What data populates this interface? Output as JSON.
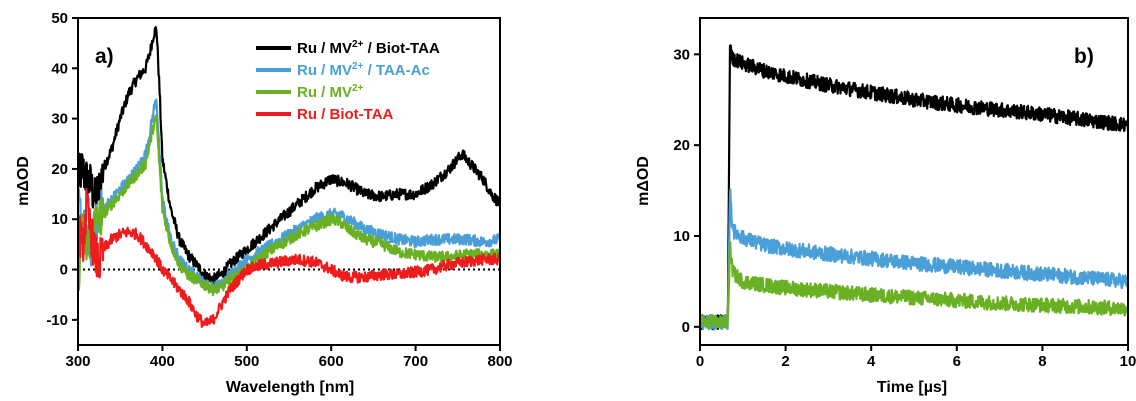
{
  "chart_data": [
    {
      "type": "line",
      "panel_label": "a)",
      "xlabel": "Wavelength [nm]",
      "ylabel": "mΔOD",
      "xlim": [
        300,
        800
      ],
      "ylim": [
        -15,
        50
      ],
      "xticks": [
        300,
        400,
        500,
        600,
        700,
        800
      ],
      "yticks": [
        -10,
        0,
        10,
        20,
        30,
        40,
        50
      ],
      "ytick_labels": [
        "-10",
        "0",
        "10",
        "20",
        "30",
        "40",
        "50"
      ],
      "zero_line": "dotted",
      "legend_position": "top-right",
      "grid": false,
      "series": [
        {
          "name": "Ru / MV2+ / Biot-TAA",
          "legend": {
            "prefix": "Ru / MV",
            "sup": "2+",
            "suffix": " / Biot-TAA"
          },
          "color": "#000000",
          "x": [
            300,
            305,
            310,
            315,
            320,
            325,
            330,
            340,
            350,
            360,
            370,
            380,
            385,
            390,
            393,
            396,
            400,
            410,
            420,
            430,
            440,
            450,
            460,
            470,
            480,
            500,
            520,
            540,
            560,
            580,
            600,
            610,
            620,
            640,
            660,
            680,
            700,
            720,
            740,
            755,
            765,
            780,
            790,
            800
          ],
          "y": [
            18,
            20,
            18,
            17,
            14,
            16,
            20,
            24,
            30,
            35,
            38,
            40,
            43,
            47,
            48,
            38,
            22,
            12,
            6,
            3,
            1,
            -1,
            -2,
            -1,
            1,
            4,
            7,
            10,
            13,
            16,
            18,
            17.5,
            17,
            15,
            14.5,
            15,
            15,
            17,
            20,
            23,
            21,
            18,
            15,
            13
          ]
        },
        {
          "name": "Ru / MV2+ / TAA-Ac",
          "legend": {
            "prefix": "Ru / MV",
            "sup": "2+",
            "suffix": " / TAA-Ac"
          },
          "color": "#4a9fd8",
          "x": [
            300,
            305,
            310,
            315,
            320,
            325,
            330,
            340,
            350,
            360,
            370,
            380,
            385,
            390,
            393,
            396,
            400,
            410,
            420,
            430,
            440,
            450,
            460,
            470,
            480,
            500,
            520,
            540,
            560,
            580,
            600,
            610,
            620,
            640,
            660,
            680,
            700,
            720,
            740,
            760,
            780,
            800
          ],
          "y": [
            13,
            10,
            5,
            3,
            8,
            11,
            12,
            14,
            16,
            18,
            20,
            23,
            27,
            32,
            34,
            25,
            14,
            6,
            2,
            0,
            -1,
            -3,
            -3.5,
            -3,
            -1,
            2,
            4,
            6,
            8,
            10,
            11,
            11,
            10,
            8,
            7,
            6,
            5.5,
            6,
            6,
            6,
            5.5,
            6
          ]
        },
        {
          "name": "Ru / MV2+",
          "legend": {
            "prefix": "Ru / MV",
            "sup": "2+",
            "suffix": ""
          },
          "color": "#6ab023",
          "x": [
            300,
            305,
            310,
            315,
            320,
            325,
            330,
            340,
            350,
            360,
            370,
            380,
            385,
            390,
            393,
            396,
            400,
            410,
            420,
            430,
            440,
            450,
            460,
            470,
            480,
            500,
            520,
            540,
            560,
            580,
            600,
            610,
            620,
            640,
            660,
            680,
            700,
            720,
            740,
            760,
            780,
            800
          ],
          "y": [
            -2,
            8,
            4,
            7,
            9,
            10,
            11,
            13,
            15,
            17,
            19,
            21,
            25,
            29,
            30,
            22,
            12,
            5,
            1,
            -1,
            -2,
            -3,
            -4,
            -3.5,
            -2,
            0,
            3,
            5,
            7,
            8.5,
            10,
            9.5,
            8,
            6,
            5,
            3.5,
            3,
            2.5,
            2.5,
            3,
            3,
            3
          ]
        },
        {
          "name": "Ru / Biot-TAA",
          "legend": {
            "prefix": "Ru / Biot-TAA",
            "sup": "",
            "suffix": ""
          },
          "color": "#ee1c1c",
          "x": [
            300,
            305,
            310,
            315,
            320,
            325,
            330,
            340,
            350,
            360,
            370,
            380,
            390,
            400,
            410,
            420,
            430,
            440,
            450,
            460,
            470,
            480,
            500,
            520,
            540,
            560,
            580,
            600,
            610,
            620,
            640,
            660,
            680,
            700,
            720,
            740,
            760,
            780,
            800
          ],
          "y": [
            10,
            4,
            12,
            8,
            3,
            1,
            4,
            6,
            7,
            7.5,
            7,
            5,
            3,
            0,
            -2,
            -4,
            -6,
            -9,
            -11,
            -10,
            -7,
            -4,
            0,
            1,
            1.5,
            2,
            1.5,
            0,
            -1,
            -1.5,
            -1.5,
            -1,
            -1,
            -0.5,
            0,
            1,
            1.5,
            2,
            2
          ]
        }
      ]
    },
    {
      "type": "line",
      "panel_label": "b)",
      "xlabel": "Time [µs]",
      "ylabel": "mΔOD",
      "xlim": [
        0,
        10
      ],
      "ylim": [
        -2,
        34
      ],
      "xticks": [
        0,
        2,
        4,
        6,
        8,
        10
      ],
      "yticks": [
        0,
        10,
        20,
        30
      ],
      "grid": false,
      "series": [
        {
          "color": "#000000",
          "x": [
            0,
            0.5,
            0.6,
            0.65,
            0.7,
            0.75,
            0.8,
            1,
            1.5,
            2,
            3,
            4,
            5,
            6,
            7,
            8,
            9,
            10
          ],
          "y": [
            0.5,
            0.5,
            0.5,
            0.5,
            31,
            29.5,
            29.5,
            29,
            28.2,
            27.6,
            26.6,
            25.8,
            25,
            24.4,
            23.9,
            23.4,
            22.8,
            22.2
          ]
        },
        {
          "color": "#4a9fd8",
          "x": [
            0,
            0.5,
            0.6,
            0.65,
            0.7,
            0.75,
            0.8,
            1,
            1.5,
            2,
            3,
            4,
            5,
            6,
            7,
            8,
            9,
            10
          ],
          "y": [
            0.5,
            0.5,
            0.5,
            0.5,
            15,
            11.5,
            10.5,
            9.8,
            9,
            8.6,
            8,
            7.5,
            7,
            6.6,
            6.2,
            5.8,
            5.4,
            5
          ]
        },
        {
          "color": "#6ab023",
          "x": [
            0,
            0.5,
            0.6,
            0.65,
            0.7,
            0.75,
            0.8,
            1,
            1.5,
            2,
            3,
            4,
            5,
            6,
            7,
            8,
            9,
            10
          ],
          "y": [
            0.5,
            0.5,
            0.5,
            0.5,
            9,
            6.5,
            5.8,
            5,
            4.6,
            4.3,
            3.9,
            3.5,
            3.2,
            2.9,
            2.6,
            2.4,
            2.2,
            2
          ]
        }
      ]
    }
  ]
}
